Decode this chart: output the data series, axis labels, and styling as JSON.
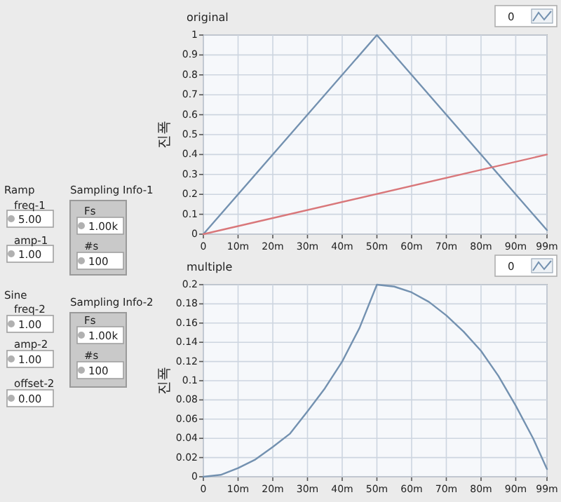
{
  "chart_data": [
    {
      "type": "other",
      "annotations": [
        "Ramp",
        "freq-1",
        "5.00",
        "amp-1",
        "1.00",
        "Sampling Info-1",
        "Fs",
        "1.00k",
        "#s",
        "100",
        "Sine",
        "freq-2",
        "1.00",
        "amp-2",
        "1.00",
        "offset-2",
        "0.00",
        "Sampling Info-2",
        "Fs",
        "1.00k",
        "#s",
        "100"
      ]
    },
    {
      "type": "line",
      "title": "original",
      "ylabel": "진폭",
      "xlim": [
        0,
        99
      ],
      "xticks": [
        0,
        {
          "value": 10,
          "label": "10m"
        },
        {
          "value": 20,
          "label": "20m"
        },
        {
          "value": 30,
          "label": "30m"
        },
        {
          "value": 40,
          "label": "40m"
        },
        {
          "value": 50,
          "label": "50m"
        },
        {
          "value": 60,
          "label": "60m"
        },
        {
          "value": 70,
          "label": "70m"
        },
        {
          "value": 80,
          "label": "80m"
        },
        {
          "value": 90,
          "label": "90m"
        },
        {
          "value": 99,
          "label": "99m"
        }
      ],
      "ylim": [
        0,
        1
      ],
      "yticks": [
        0,
        0.1,
        0.2,
        0.3,
        0.4,
        0.5,
        0.6,
        0.7,
        0.8,
        0.9,
        1
      ],
      "grid": true,
      "legend": "top right",
      "series": [
        {
          "name": "0",
          "color": "#7391b0",
          "x": [
            0,
            50,
            99
          ],
          "values": [
            0,
            1,
            0.02
          ]
        },
        {
          "color": "#d9777a",
          "x": [
            0,
            99
          ],
          "values": [
            0,
            0.4
          ]
        }
      ]
    },
    {
      "type": "line",
      "title": "multiple",
      "ylabel": "진폭",
      "xlim": [
        0,
        99
      ],
      "xticks": [
        0,
        {
          "value": 10,
          "label": "10m"
        },
        {
          "value": 20,
          "label": "20m"
        },
        {
          "value": 30,
          "label": "30m"
        },
        {
          "value": 40,
          "label": "40m"
        },
        {
          "value": 50,
          "label": "50m"
        },
        {
          "value": 60,
          "label": "60m"
        },
        {
          "value": 70,
          "label": "70m"
        },
        {
          "value": 80,
          "label": "80m"
        },
        {
          "value": 90,
          "label": "90m"
        },
        {
          "value": 99,
          "label": "99m"
        }
      ],
      "ylim": [
        0,
        0.2
      ],
      "yticks": [
        0,
        0.02,
        0.04,
        0.06,
        0.08,
        0.1,
        0.12,
        0.14,
        0.16,
        0.18,
        0.2
      ],
      "grid": true,
      "legend": "top right",
      "series": [
        {
          "name": "0",
          "color": "#7391b0",
          "x": [
            0,
            5,
            10,
            15,
            20,
            25,
            30,
            35,
            40,
            45,
            50,
            55,
            60,
            65,
            70,
            75,
            80,
            85,
            90,
            95,
            99
          ],
          "values": [
            0,
            0.002,
            0.009,
            0.018,
            0.031,
            0.045,
            0.068,
            0.092,
            0.12,
            0.155,
            0.2,
            0.198,
            0.192,
            0.182,
            0.168,
            0.151,
            0.131,
            0.105,
            0.074,
            0.04,
            0.008
          ]
        }
      ]
    }
  ]
}
